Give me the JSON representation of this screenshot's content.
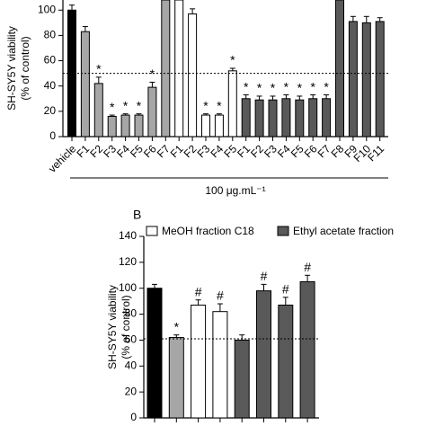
{
  "chart_data": [
    {
      "type": "bar",
      "y_label": [
        "SH-SY5Y viability",
        "(% of control)"
      ],
      "x_label": "100 μg.mL⁻¹",
      "categories": [
        "vehicle",
        "F1",
        "F2",
        "F3",
        "F4",
        "F5",
        "F6",
        "F7",
        "F1",
        "F2",
        "F3",
        "F4",
        "F5",
        "F1",
        "F2",
        "F3",
        "F4",
        "F5",
        "F6",
        "F7",
        "F8",
        "F9",
        "F10",
        "F11"
      ],
      "values": [
        100,
        83,
        42,
        16,
        17,
        17,
        39,
        108,
        108,
        97,
        17,
        17,
        52,
        30,
        29,
        29,
        30,
        29,
        30,
        30,
        108,
        91,
        90,
        91
      ],
      "errors": [
        4,
        4,
        5,
        1,
        1,
        1,
        4,
        4,
        4,
        4,
        1,
        1,
        2,
        3,
        3,
        3,
        3,
        3,
        3,
        3,
        4,
        4,
        5,
        3
      ],
      "markers": [
        null,
        null,
        "*",
        "*",
        "*",
        "*",
        "*",
        null,
        null,
        null,
        "*",
        "*",
        "*",
        "*",
        "*",
        "*",
        "*",
        "*",
        "*",
        "*",
        null,
        null,
        null,
        null
      ],
      "colors": [
        "#000000",
        "#a6a6a6",
        "#a6a6a6",
        "#a6a6a6",
        "#a6a6a6",
        "#a6a6a6",
        "#a6a6a6",
        "#a6a6a6",
        "#ffffff",
        "#ffffff",
        "#ffffff",
        "#ffffff",
        "#ffffff",
        "#595959",
        "#595959",
        "#595959",
        "#595959",
        "#595959",
        "#595959",
        "#595959",
        "#595959",
        "#595959",
        "#595959",
        "#595959"
      ],
      "reference_line": 50,
      "ylim": [
        0,
        108
      ],
      "yticks": [
        0,
        20,
        40,
        60,
        80,
        100
      ]
    },
    {
      "type": "bar",
      "panel": "B",
      "y_label": [
        "SH-SY5Y viability",
        "(% of control)"
      ],
      "series": [
        {
          "name": "MeOH fraction C18",
          "color": "#ffffff"
        },
        {
          "name": "Ethyl acetate fraction",
          "color": "#595959"
        }
      ],
      "values": [
        100,
        62,
        87,
        82,
        60,
        98,
        87,
        105
      ],
      "errors": [
        3,
        2,
        4,
        6,
        4,
        5,
        6,
        5
      ],
      "markers": [
        null,
        "*",
        "#",
        "#",
        null,
        "#",
        "#",
        "#"
      ],
      "colors": [
        "#000000",
        "#a6a6a6",
        "#ffffff",
        "#ffffff",
        "#595959",
        "#595959",
        "#595959",
        "#595959"
      ],
      "reference_line": 61,
      "ylim": [
        0,
        140
      ],
      "yticks": [
        0,
        20,
        40,
        60,
        80,
        100,
        120,
        140
      ]
    }
  ]
}
